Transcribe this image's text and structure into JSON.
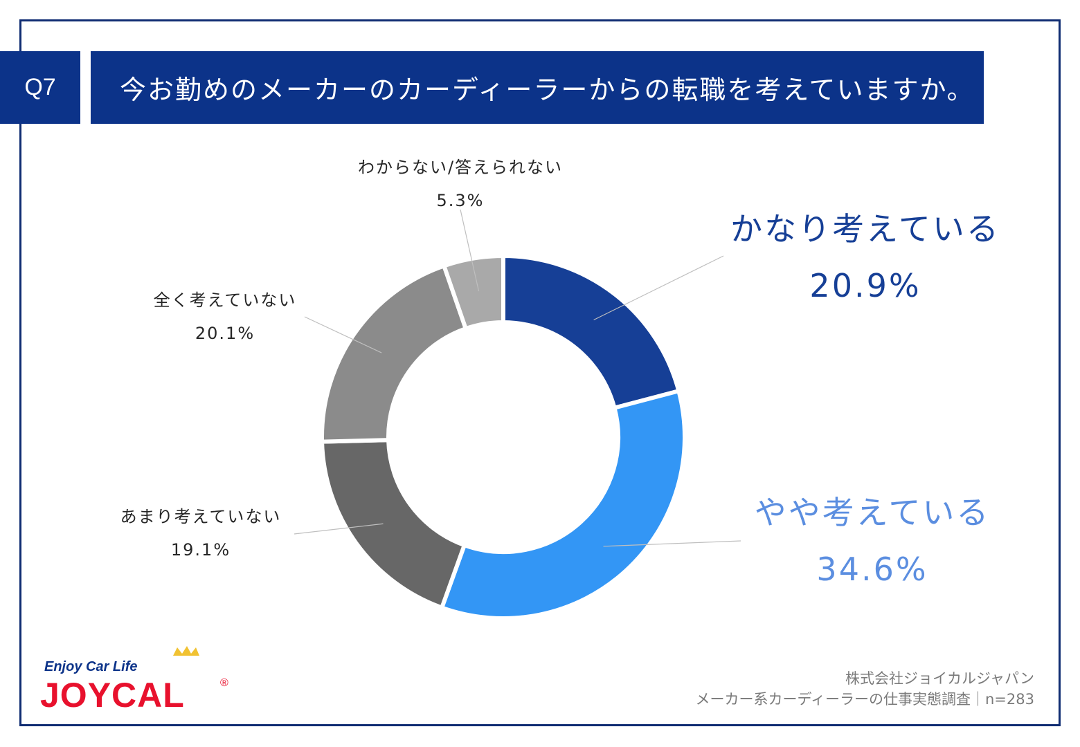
{
  "header": {
    "badge": "Q7",
    "question": "今お勤めのメーカーのカーディーラーからの転職を考えていますか。"
  },
  "chart_data": {
    "type": "pie",
    "donut": true,
    "slices": [
      {
        "label": "かなり考えている",
        "value": 20.9,
        "value_text": "20.9%",
        "color": "#163f96"
      },
      {
        "label": "やや考えている",
        "value": 34.6,
        "value_text": "34.6%",
        "color": "#3396f5"
      },
      {
        "label": "あまり考えていない",
        "value": 19.1,
        "value_text": "19.1%",
        "color": "#676767"
      },
      {
        "label": "全く考えていない",
        "value": 20.1,
        "value_text": "20.1%",
        "color": "#8b8b8b"
      },
      {
        "label": "わからない/答えられない",
        "value": 5.3,
        "value_text": "5.3%",
        "color": "#a9a9a9"
      }
    ],
    "label_colors": {
      "strong": "#163f96",
      "light": "#5b8ee0"
    }
  },
  "logo": {
    "tagline": "Enjoy Car Life",
    "wordmark": "JOYCAL",
    "mark": "®"
  },
  "footer": {
    "company": "株式会社ジョイカルジャパン",
    "source": "メーカー系カーディーラーの仕事実態調査｜n=283"
  }
}
